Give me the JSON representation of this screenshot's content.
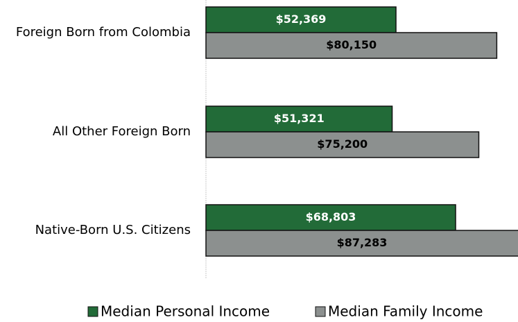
{
  "chart_data": {
    "type": "bar",
    "orientation": "horizontal",
    "categories": [
      "Foreign Born from Colombia",
      "All Other Foreign Born",
      "Native-Born U.S. Citizens"
    ],
    "series": [
      {
        "name": "Median Personal Income",
        "color": "#226b38",
        "values": [
          52369,
          51321,
          68803
        ],
        "value_labels": [
          "$52,369",
          "$51,321",
          "$68,803"
        ],
        "label_color": "#ffffff"
      },
      {
        "name": "Median Family Income",
        "color": "#8c908f",
        "values": [
          80150,
          75200,
          87283
        ],
        "value_labels": [
          "$80,150",
          "$75,200",
          "$87,283"
        ],
        "label_color": "#000000"
      }
    ],
    "xlim": [
      0,
      86000
    ],
    "legend": "bottom"
  }
}
